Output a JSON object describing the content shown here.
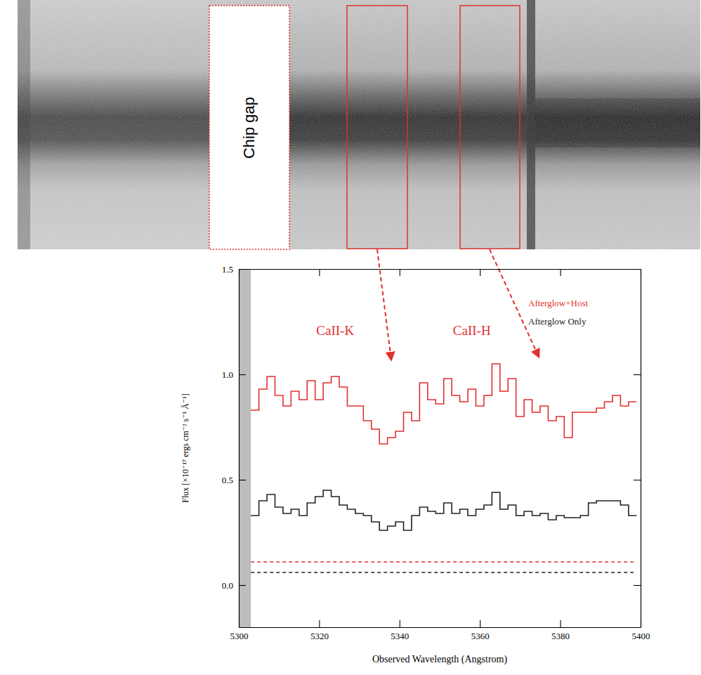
{
  "chart_data": {
    "type": "line",
    "x": [
      5303,
      5305,
      5307,
      5309,
      5311,
      5313,
      5315,
      5317,
      5319,
      5321,
      5323,
      5325,
      5327,
      5329,
      5331,
      5333,
      5335,
      5337,
      5339,
      5341,
      5343,
      5345,
      5347,
      5349,
      5351,
      5353,
      5355,
      5357,
      5359,
      5361,
      5363,
      5365,
      5367,
      5369,
      5371,
      5373,
      5375,
      5377,
      5379,
      5381,
      5383,
      5385,
      5387,
      5389,
      5391,
      5393,
      5395,
      5397,
      5399
    ],
    "series": [
      {
        "name": "Afterglow+Host",
        "color": "#e0302f",
        "line_style": "solid",
        "values": [
          0.83,
          0.93,
          0.99,
          0.9,
          0.85,
          0.92,
          0.88,
          0.97,
          0.88,
          0.96,
          0.99,
          0.94,
          0.85,
          0.85,
          0.78,
          0.74,
          0.67,
          0.7,
          0.73,
          0.82,
          0.78,
          0.96,
          0.88,
          0.86,
          0.98,
          0.9,
          0.87,
          0.93,
          0.85,
          0.9,
          1.05,
          0.92,
          0.98,
          0.8,
          0.88,
          0.82,
          0.85,
          0.78,
          0.8,
          0.7,
          0.82,
          0.82,
          0.82,
          0.84,
          0.87,
          0.9,
          0.85,
          0.87,
          0.87
        ]
      },
      {
        "name": "Afterglow Only",
        "color": "#222222",
        "line_style": "solid",
        "values": [
          0.33,
          0.4,
          0.43,
          0.37,
          0.34,
          0.36,
          0.33,
          0.39,
          0.42,
          0.45,
          0.42,
          0.38,
          0.36,
          0.34,
          0.33,
          0.3,
          0.26,
          0.28,
          0.3,
          0.26,
          0.33,
          0.37,
          0.35,
          0.34,
          0.39,
          0.34,
          0.36,
          0.33,
          0.36,
          0.38,
          0.44,
          0.36,
          0.38,
          0.33,
          0.35,
          0.33,
          0.34,
          0.31,
          0.33,
          0.32,
          0.32,
          0.33,
          0.39,
          0.4,
          0.4,
          0.4,
          0.38,
          0.33,
          0.33
        ]
      },
      {
        "color": "#e0302f",
        "line_style": "dashed",
        "values": [
          0.11,
          0.11,
          0.11,
          0.11,
          0.11,
          0.11,
          0.11,
          0.11,
          0.11,
          0.11,
          0.11,
          0.11,
          0.11,
          0.11,
          0.11,
          0.11,
          0.11,
          0.11,
          0.11,
          0.11,
          0.11,
          0.11,
          0.11,
          0.11,
          0.11,
          0.11,
          0.11,
          0.11,
          0.11,
          0.11,
          0.11,
          0.11,
          0.11,
          0.11,
          0.11,
          0.11,
          0.11,
          0.11,
          0.11,
          0.11,
          0.11,
          0.11,
          0.11,
          0.11,
          0.11,
          0.11,
          0.11,
          0.11,
          0.11
        ]
      },
      {
        "color": "#222222",
        "line_style": "dashed",
        "values": [
          0.06,
          0.06,
          0.06,
          0.06,
          0.06,
          0.06,
          0.06,
          0.06,
          0.06,
          0.06,
          0.06,
          0.06,
          0.06,
          0.06,
          0.06,
          0.06,
          0.06,
          0.06,
          0.06,
          0.06,
          0.06,
          0.06,
          0.06,
          0.06,
          0.06,
          0.06,
          0.06,
          0.06,
          0.06,
          0.06,
          0.06,
          0.06,
          0.06,
          0.06,
          0.06,
          0.06,
          0.06,
          0.06,
          0.06,
          0.06,
          0.06,
          0.06,
          0.06,
          0.06,
          0.06,
          0.06,
          0.06,
          0.06,
          0.06
        ]
      }
    ],
    "xlim": [
      5300,
      5400
    ],
    "xticks": [
      5300,
      5320,
      5340,
      5360,
      5380,
      5400
    ],
    "ylim": [
      -0.2,
      1.5
    ],
    "yticks": [
      {
        "value": 0,
        "label": "0.0"
      },
      {
        "value": 0.5,
        "label": "0.5"
      },
      {
        "value": 1,
        "label": "1.0"
      },
      {
        "value": 1.5,
        "label": "1.5"
      }
    ],
    "x_label": "Observed Wavelength (Angstrom)",
    "y_label": "Flux [×10⁻¹⁷ ergs cm⁻² s⁻¹ Å⁻¹]",
    "gap": [
      5300,
      5303
    ],
    "annotations": [
      {
        "text": "CaII-K",
        "x": 5324,
        "y": 1.2
      },
      {
        "text": "CaII-H",
        "x": 5358,
        "y": 1.2
      }
    ],
    "legend": "upper right"
  },
  "spectrum_image": {
    "label": "Chip gap"
  }
}
